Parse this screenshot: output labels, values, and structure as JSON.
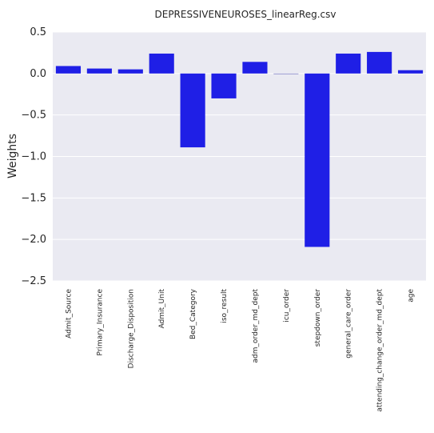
{
  "chart_data": {
    "type": "bar",
    "title": "DEPRESSIVENEUROSES_linearReg.csv",
    "xlabel": "",
    "ylabel": "Weights",
    "ylim": [
      -2.5,
      0.5
    ],
    "yticks": [
      0.5,
      0.0,
      -0.5,
      -1.0,
      -1.5,
      -2.0,
      -2.5
    ],
    "ytick_labels": [
      "0.5",
      "0.0",
      "−0.5",
      "−1.0",
      "−1.5",
      "−2.0",
      "−2.5"
    ],
    "grid": true,
    "categories": [
      "Admit_Source",
      "Primary_Insurance",
      "Discharge_Disposition",
      "Admit_Unit",
      "Bed_Category",
      "iso_result",
      "adm_order_md_dept",
      "icu_order",
      "stepdown_order",
      "general_care_order",
      "attending_change_order_md_dept",
      "age"
    ],
    "values": [
      0.09,
      0.06,
      0.05,
      0.24,
      -0.89,
      -0.3,
      0.14,
      -0.01,
      -2.09,
      0.24,
      0.26,
      0.04
    ],
    "colors": {
      "bar": "#1f1fe6",
      "bar_small": "#9a9ad0",
      "background": "#eaeaf2",
      "grid": "#ffffff"
    }
  }
}
